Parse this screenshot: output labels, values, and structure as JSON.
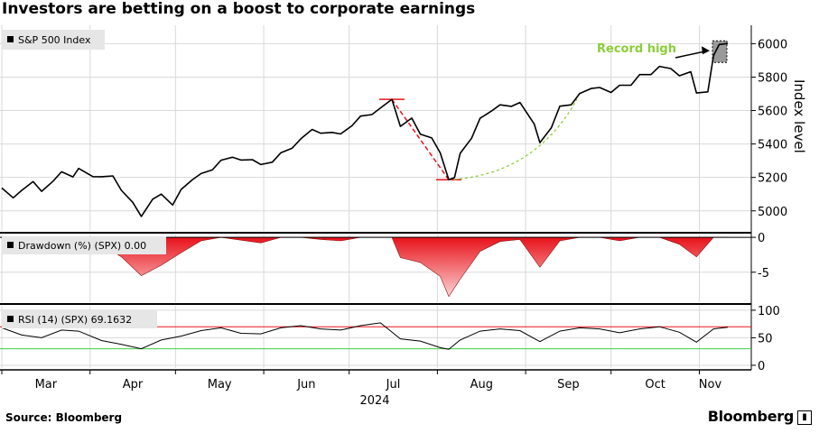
{
  "title": "Investors are betting on a boost to corporate earnings",
  "footer": {
    "source": "Source: Bloomberg",
    "brand": "Bloomberg",
    "brand_icon": "bloomberg-terminal-icon"
  },
  "chart_data": [
    {
      "type": "line",
      "legend": "S&P 500 Index",
      "ylabel": "Index level",
      "yticks": [
        5000,
        5200,
        5400,
        5600,
        5800,
        6000
      ],
      "ylim": [
        4880,
        6110
      ],
      "annotation": "Record high",
      "annotation_color": "#8ccd3a",
      "series_color": "#000000",
      "x": [
        "2024-03-01",
        "2024-03-05",
        "2024-03-08",
        "2024-03-12",
        "2024-03-15",
        "2024-03-19",
        "2024-03-22",
        "2024-03-26",
        "2024-03-28",
        "2024-04-02",
        "2024-04-05",
        "2024-04-09",
        "2024-04-12",
        "2024-04-16",
        "2024-04-19",
        "2024-04-23",
        "2024-04-26",
        "2024-04-30",
        "2024-05-03",
        "2024-05-07",
        "2024-05-10",
        "2024-05-14",
        "2024-05-17",
        "2024-05-21",
        "2024-05-24",
        "2024-05-28",
        "2024-05-31",
        "2024-06-04",
        "2024-06-07",
        "2024-06-11",
        "2024-06-14",
        "2024-06-18",
        "2024-06-21",
        "2024-06-25",
        "2024-06-28",
        "2024-07-02",
        "2024-07-05",
        "2024-07-09",
        "2024-07-12",
        "2024-07-16",
        "2024-07-19",
        "2024-07-23",
        "2024-07-26",
        "2024-07-30",
        "2024-08-02",
        "2024-08-05",
        "2024-08-07",
        "2024-08-09",
        "2024-08-13",
        "2024-08-16",
        "2024-08-20",
        "2024-08-23",
        "2024-08-27",
        "2024-08-30",
        "2024-09-04",
        "2024-09-06",
        "2024-09-10",
        "2024-09-13",
        "2024-09-17",
        "2024-09-20",
        "2024-09-24",
        "2024-09-27",
        "2024-10-01",
        "2024-10-04",
        "2024-10-08",
        "2024-10-11",
        "2024-10-15",
        "2024-10-18",
        "2024-10-22",
        "2024-10-25",
        "2024-10-29",
        "2024-10-31",
        "2024-11-04",
        "2024-11-06",
        "2024-11-08",
        "2024-11-11"
      ],
      "values": [
        5137,
        5078,
        5123,
        5175,
        5117,
        5178,
        5234,
        5203,
        5254,
        5205,
        5204,
        5209,
        5123,
        5051,
        4967,
        5070,
        5100,
        5035,
        5128,
        5187,
        5223,
        5246,
        5303,
        5321,
        5304,
        5306,
        5277,
        5291,
        5347,
        5375,
        5431,
        5487,
        5464,
        5469,
        5460,
        5509,
        5567,
        5576,
        5615,
        5667,
        5505,
        5555,
        5459,
        5436,
        5346,
        5186,
        5199,
        5344,
        5434,
        5554,
        5597,
        5634,
        5625,
        5648,
        5520,
        5408,
        5496,
        5626,
        5634,
        5702,
        5732,
        5738,
        5708,
        5751,
        5751,
        5815,
        5815,
        5864,
        5851,
        5808,
        5832,
        5705,
        5712,
        5929,
        5995,
        6001
      ],
      "peak": {
        "date": "2024-07-16",
        "value": 5667
      },
      "trough": {
        "date": "2024-08-05",
        "value": 5186
      }
    },
    {
      "type": "area",
      "legend": "Drawdown (%) (SPX) 0.00",
      "yticks": [
        0,
        -5
      ],
      "ylim": [
        -9.3,
        0.4
      ],
      "fill_color": "#e8121b",
      "x": [
        "2024-03-01",
        "2024-03-08",
        "2024-03-15",
        "2024-03-22",
        "2024-03-28",
        "2024-04-05",
        "2024-04-12",
        "2024-04-19",
        "2024-04-26",
        "2024-05-03",
        "2024-05-10",
        "2024-05-17",
        "2024-05-24",
        "2024-05-31",
        "2024-06-07",
        "2024-06-14",
        "2024-06-21",
        "2024-06-28",
        "2024-07-05",
        "2024-07-12",
        "2024-07-16",
        "2024-07-19",
        "2024-07-26",
        "2024-08-02",
        "2024-08-05",
        "2024-08-09",
        "2024-08-16",
        "2024-08-23",
        "2024-08-30",
        "2024-09-06",
        "2024-09-13",
        "2024-09-20",
        "2024-09-27",
        "2024-10-04",
        "2024-10-11",
        "2024-10-18",
        "2024-10-25",
        "2024-10-31",
        "2024-11-06",
        "2024-11-11"
      ],
      "values": [
        0,
        -1.2,
        -1.8,
        -0.3,
        0,
        -1.0,
        -2.8,
        -5.5,
        -4.0,
        -2.2,
        -0.5,
        0,
        -0.4,
        -0.8,
        0,
        0,
        -0.3,
        -0.5,
        0,
        0,
        0,
        -2.9,
        -3.6,
        -5.6,
        -8.5,
        -6.0,
        -2.0,
        -0.6,
        -0.3,
        -4.3,
        -0.5,
        0,
        0,
        -0.5,
        0,
        0,
        -1.0,
        -2.8,
        0,
        0
      ]
    },
    {
      "type": "line",
      "legend": "RSI (14) (SPX) 69.1632",
      "yticks": [
        0,
        50,
        100
      ],
      "ylim": [
        -5,
        108
      ],
      "ref_lines": [
        {
          "value": 70,
          "color": "#e8121b"
        },
        {
          "value": 30,
          "color": "#3fcf3f"
        }
      ],
      "x": [
        "2024-03-01",
        "2024-03-08",
        "2024-03-15",
        "2024-03-22",
        "2024-03-28",
        "2024-04-05",
        "2024-04-12",
        "2024-04-19",
        "2024-04-26",
        "2024-05-03",
        "2024-05-10",
        "2024-05-17",
        "2024-05-24",
        "2024-05-31",
        "2024-06-07",
        "2024-06-14",
        "2024-06-21",
        "2024-06-28",
        "2024-07-05",
        "2024-07-12",
        "2024-07-19",
        "2024-07-26",
        "2024-08-02",
        "2024-08-05",
        "2024-08-09",
        "2024-08-16",
        "2024-08-23",
        "2024-08-30",
        "2024-09-06",
        "2024-09-13",
        "2024-09-20",
        "2024-09-27",
        "2024-10-04",
        "2024-10-11",
        "2024-10-18",
        "2024-10-25",
        "2024-10-31",
        "2024-11-06",
        "2024-11-11"
      ],
      "values": [
        68,
        55,
        50,
        64,
        62,
        45,
        38,
        30,
        46,
        53,
        63,
        68,
        58,
        57,
        68,
        72,
        66,
        64,
        72,
        77,
        48,
        44,
        32,
        29,
        46,
        62,
        66,
        63,
        43,
        62,
        68,
        66,
        59,
        66,
        70,
        60,
        42,
        66,
        69
      ]
    }
  ],
  "x_axis": {
    "labels": [
      "Mar",
      "Apr",
      "May",
      "Jun",
      "Jul",
      "Aug",
      "Sep",
      "Oct",
      "Nov"
    ],
    "year": "2024"
  }
}
